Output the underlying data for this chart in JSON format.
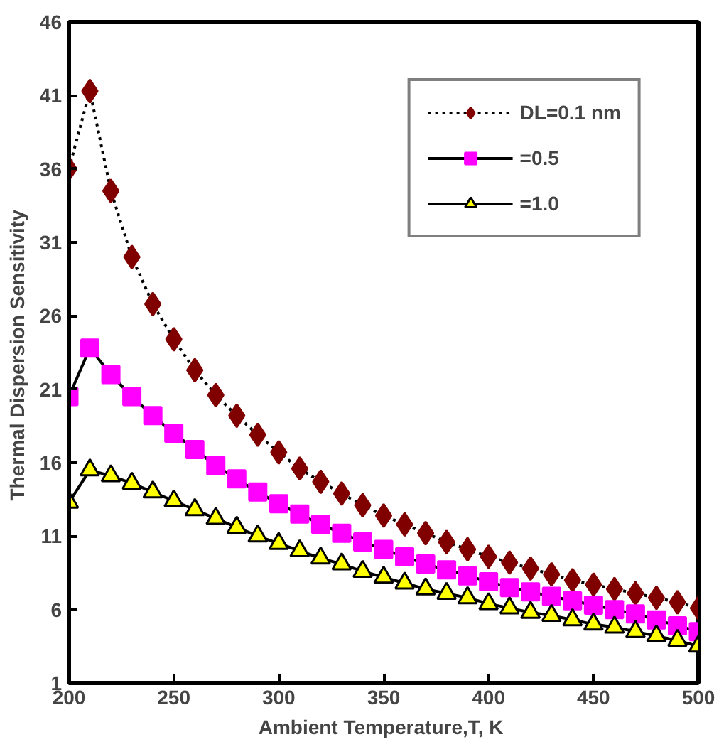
{
  "chart_data": {
    "type": "line",
    "xlabel": "Ambient Temperature,T,  K",
    "ylabel": "Thermal  Dispersion Sensitivity",
    "x": [
      200,
      210,
      220,
      230,
      240,
      250,
      260,
      270,
      280,
      290,
      300,
      310,
      320,
      330,
      340,
      350,
      360,
      370,
      380,
      390,
      400,
      410,
      420,
      430,
      440,
      450,
      460,
      470,
      480,
      490,
      500
    ],
    "series": [
      {
        "name": "DL=0.1 nm",
        "color": "#800000",
        "marker": "diamond",
        "line_style": "dotted",
        "values": [
          36,
          41.3,
          34.5,
          30,
          26.8,
          24.4,
          22.3,
          20.6,
          19.2,
          17.9,
          16.7,
          15.6,
          14.7,
          13.9,
          13.1,
          12.4,
          11.8,
          11.2,
          10.6,
          10.1,
          9.6,
          9.2,
          8.8,
          8.4,
          8.0,
          7.7,
          7.4,
          7.1,
          6.8,
          6.5,
          6.1
        ]
      },
      {
        "name": "=0.5",
        "color": "#ff00ff",
        "marker": "square",
        "line_style": "solid",
        "values": [
          20.5,
          23.8,
          22.0,
          20.5,
          19.2,
          18.0,
          16.9,
          15.8,
          14.9,
          14.0,
          13.2,
          12.5,
          11.8,
          11.2,
          10.6,
          10.1,
          9.6,
          9.1,
          8.7,
          8.3,
          7.9,
          7.5,
          7.2,
          6.9,
          6.6,
          6.3,
          6.0,
          5.7,
          5.3,
          4.9,
          4.5
        ]
      },
      {
        "name": "=1.0",
        "color": "#ffff00",
        "marker": "triangle",
        "line_style": "solid",
        "values": [
          13.3,
          15.5,
          15.1,
          14.6,
          14.0,
          13.4,
          12.8,
          12.2,
          11.6,
          11.0,
          10.5,
          10.0,
          9.5,
          9.1,
          8.6,
          8.2,
          7.8,
          7.4,
          7.1,
          6.8,
          6.4,
          6.1,
          5.8,
          5.6,
          5.3,
          5.0,
          4.8,
          4.5,
          4.2,
          3.9,
          3.5
        ]
      }
    ],
    "xlim": [
      200,
      500
    ],
    "ylim": [
      1,
      46
    ],
    "xticks": [
      200,
      250,
      300,
      350,
      400,
      450,
      500
    ],
    "yticks": [
      1,
      6,
      11,
      16,
      21,
      26,
      31,
      36,
      41,
      46
    ],
    "grid": false,
    "legend": "top right"
  }
}
